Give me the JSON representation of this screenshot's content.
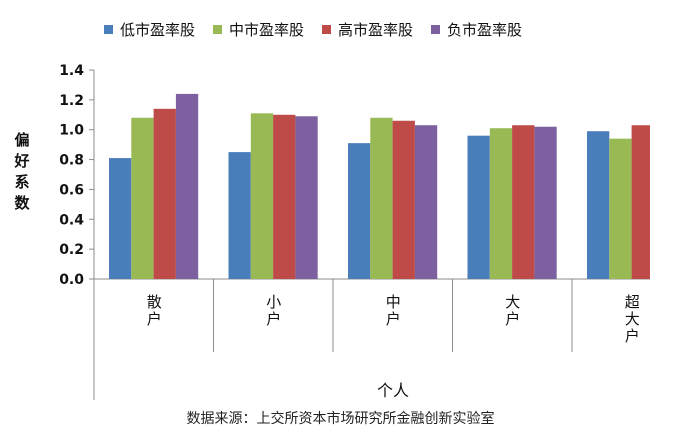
{
  "chart_data": {
    "type": "bar",
    "categories": [
      "散户",
      "小户",
      "中户",
      "大户",
      "超大户"
    ],
    "series": [
      {
        "name": "低市盈率股",
        "color": "#4a7ebb",
        "values": [
          0.81,
          0.85,
          0.91,
          0.96,
          0.99
        ]
      },
      {
        "name": "中市盈率股",
        "color": "#98b954",
        "values": [
          1.08,
          1.11,
          1.08,
          1.01,
          0.94
        ]
      },
      {
        "name": "高市盈率股",
        "color": "#be4b48",
        "values": [
          1.14,
          1.1,
          1.06,
          1.03,
          1.03
        ]
      },
      {
        "name": "负市盈率股",
        "color": "#7d60a0",
        "values": [
          1.24,
          1.09,
          1.03,
          1.02,
          null
        ]
      }
    ],
    "ylabel": "偏好系数",
    "xlabel": "个人",
    "ylim": [
      0,
      1.4
    ],
    "yticks": [
      "0.0",
      "0.2",
      "0.4",
      "0.6",
      "0.8",
      "1.0",
      "1.2",
      "1.4"
    ],
    "legend_position": "top",
    "grid": false
  },
  "source_note": "数据来源：上交所资本市场研究所金融创新实验室"
}
